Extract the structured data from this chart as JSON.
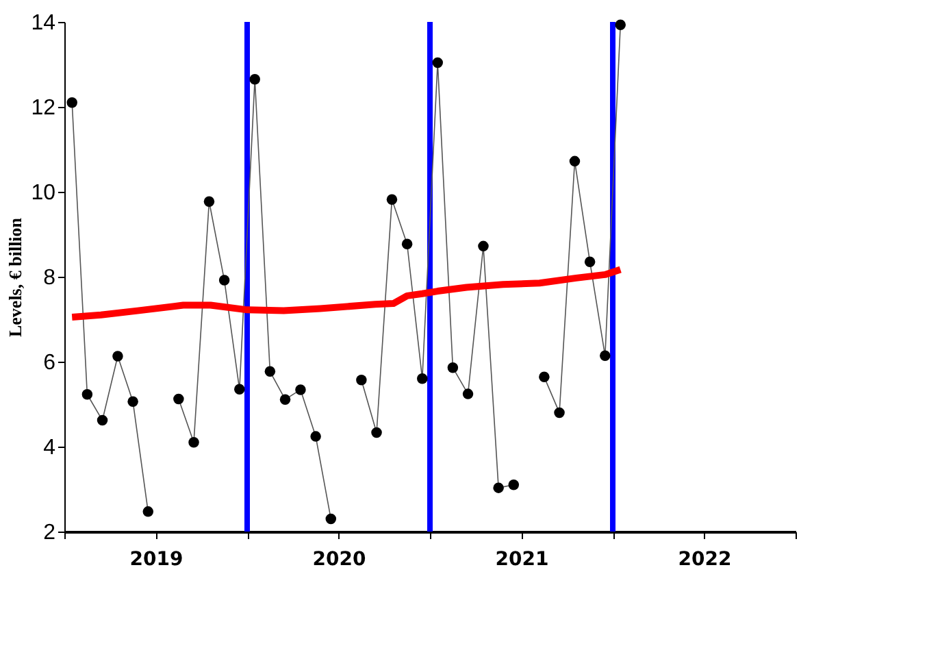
{
  "chart_data": {
    "type": "line",
    "ylabel": "Levels, € billion",
    "xlim": [
      2019,
      2023
    ],
    "ylim": [
      2,
      14
    ],
    "yticks": [
      2,
      4,
      6,
      8,
      10,
      12,
      14
    ],
    "xticks": [
      {
        "value": 2019,
        "label": null
      },
      {
        "value": 2019.5,
        "label": "2019"
      },
      {
        "value": 2020,
        "label": null
      },
      {
        "value": 2020.5,
        "label": "2020"
      },
      {
        "value": 2021,
        "label": null
      },
      {
        "value": 2021.5,
        "label": "2021"
      },
      {
        "value": 2022,
        "label": null
      },
      {
        "value": 2022.5,
        "label": "2022"
      },
      {
        "value": 2023,
        "label": null
      }
    ],
    "grid": false,
    "series": [
      {
        "color": "#000000",
        "marker": "circle",
        "x": [
          2019.042,
          2019.125,
          2019.208,
          2019.292,
          2019.375,
          2019.458,
          2019.542,
          2019.625,
          2019.708,
          2019.792,
          2019.875,
          2019.958,
          2020.042,
          2020.125,
          2020.208,
          2020.292,
          2020.375,
          2020.458,
          2020.542,
          2020.625,
          2020.708,
          2020.792,
          2020.875,
          2020.958,
          2021.042,
          2021.125,
          2021.208,
          2021.292,
          2021.375,
          2021.458,
          2021.542,
          2021.625,
          2021.708,
          2021.792,
          2021.875,
          2021.958,
          2022.042
        ],
        "values": [
          12.1,
          5.23,
          4.62,
          6.13,
          5.06,
          2.47,
          null,
          5.12,
          4.1,
          9.77,
          7.92,
          5.35,
          12.65,
          5.77,
          5.11,
          5.34,
          4.24,
          2.3,
          null,
          5.57,
          4.33,
          9.82,
          8.77,
          5.6,
          13.04,
          5.86,
          5.24,
          8.72,
          3.03,
          3.1,
          null,
          5.64,
          4.8,
          10.72,
          8.35,
          6.14,
          13.93
        ]
      },
      {
        "color": "#ff0000",
        "marker": "none",
        "x": [
          2019.042,
          2019.2,
          2019.4,
          2019.65,
          2019.8,
          2020.0,
          2020.2,
          2020.4,
          2020.7,
          2020.8,
          2020.875,
          2020.958,
          2021.042,
          2021.2,
          2021.4,
          2021.6,
          2021.8,
          2021.958,
          2022.042
        ],
        "values": [
          7.05,
          7.1,
          7.2,
          7.33,
          7.33,
          7.22,
          7.2,
          7.25,
          7.35,
          7.37,
          7.55,
          7.6,
          7.66,
          7.75,
          7.82,
          7.85,
          7.97,
          8.05,
          8.17
        ]
      }
    ],
    "ref_lines": [
      {
        "axis": "x",
        "value": 2020,
        "color": "#0000ff"
      },
      {
        "axis": "x",
        "value": 2021,
        "color": "#0000ff"
      },
      {
        "axis": "x",
        "value": 2022,
        "color": "#0000ff"
      }
    ]
  }
}
